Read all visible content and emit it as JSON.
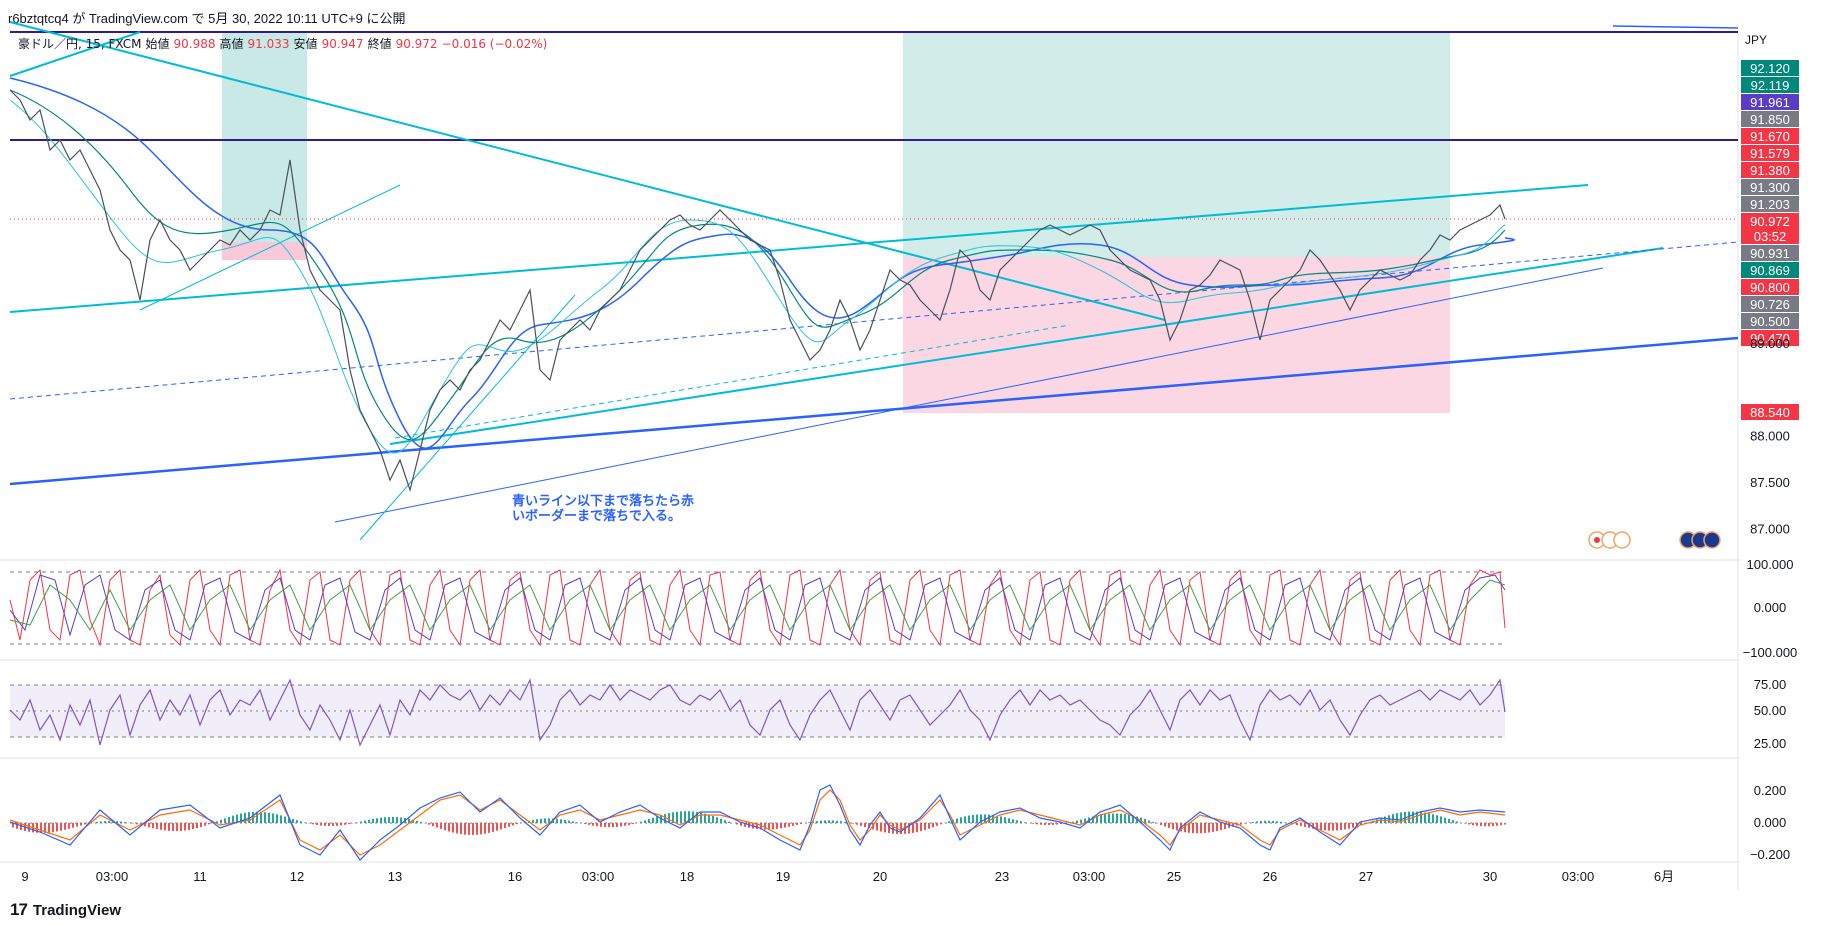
{
  "header": {
    "published_text": "r6bztqtcq4 が TradingView.com で 5月 30, 2022 10:11 UTC+9 に公開"
  },
  "legend": {
    "symbol": "豪ドル／円, 15, FXCM",
    "open_label": "始値",
    "open": "90.988",
    "high_label": "高値",
    "high": "91.033",
    "low_label": "安値",
    "low": "90.947",
    "close_label": "終値",
    "close": "90.972",
    "change": "−0.016 (−0.02%)"
  },
  "annotation": {
    "line1": "青いライン以下まで落ちたら赤",
    "line2": "いボーダーまで落ちで入る。"
  },
  "footer": {
    "brand": "TradingView"
  },
  "colors": {
    "cyan": "#00bcd4",
    "blue": "#2962ff",
    "navy_purple": "#311b92",
    "green_zone": "#b2dfdb",
    "red_zone": "#f8bbd0",
    "teal_tag": "#00897b",
    "red_tag": "#f23645",
    "gray_tag": "#787b86",
    "purple_tag": "#5b3cc4",
    "rsi_line": "#7e57c2",
    "macd_blue": "#2962ff",
    "macd_orange": "#ff6d00"
  },
  "chart_data": {
    "type": "candlestick",
    "currency": "JPY",
    "price_ticks": [
      "89.000",
      "88.000",
      "87.500",
      "87.000"
    ],
    "price_range": [
      86.8,
      92.35
    ],
    "price_tags": [
      {
        "value": "92.120",
        "kind": "teal"
      },
      {
        "value": "92.119",
        "kind": "teal"
      },
      {
        "value": "91.961",
        "kind": "purple"
      },
      {
        "value": "91.850",
        "kind": "gray"
      },
      {
        "value": "91.670",
        "kind": "red"
      },
      {
        "value": "91.579",
        "kind": "red"
      },
      {
        "value": "91.380",
        "kind": "red"
      },
      {
        "value": "91.300",
        "kind": "gray"
      },
      {
        "value": "91.203",
        "kind": "gray"
      },
      {
        "value": "90.972",
        "kind": "red",
        "sub": "03:52"
      },
      {
        "value": "90.931",
        "kind": "gray"
      },
      {
        "value": "90.869",
        "kind": "teal"
      },
      {
        "value": "90.800",
        "kind": "red"
      },
      {
        "value": "90.726",
        "kind": "gray"
      },
      {
        "value": "90.500",
        "kind": "gray"
      },
      {
        "value": "90.470",
        "kind": "red"
      },
      {
        "value": "88.540",
        "kind": "red"
      }
    ],
    "x_labels": [
      "9",
      "03:00",
      "11",
      "12",
      "13",
      "16",
      "03:00",
      "18",
      "19",
      "20",
      "23",
      "03:00",
      "25",
      "26",
      "27",
      "30",
      "03:00",
      "6月"
    ],
    "stoch_ticks": [
      "100.000",
      "0.000",
      "−100.000"
    ],
    "rsi_ticks": [
      "75.00",
      "50.00",
      "25.00"
    ],
    "macd_ticks": [
      "0.200",
      "0.000",
      "−0.200"
    ]
  }
}
